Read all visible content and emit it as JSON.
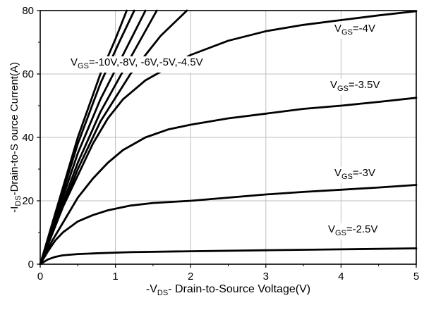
{
  "chart_data": {
    "type": "line",
    "title": "",
    "xlabel_pre": "-V",
    "xlabel_sub": "DS",
    "xlabel_post": "- Drain-to-Source Voltage(V)",
    "ylabel_pre": "-I",
    "ylabel_sub": "DS",
    "ylabel_post": "-Drain-to-S ource Current(A)",
    "xlim": [
      0,
      5
    ],
    "ylim": [
      0,
      80
    ],
    "xticks": [
      0,
      1,
      2,
      3,
      4,
      5
    ],
    "yticks": [
      0,
      20,
      40,
      60,
      80
    ],
    "x_minor_step": 0.5,
    "y_minor_step": 10,
    "grid_on": true,
    "grid_color": "#bfbfbf",
    "line_color": "#000000",
    "legend_position": "none",
    "series": [
      {
        "name": "VGS=-10V",
        "points": [
          [
            0,
            0
          ],
          [
            0.2,
            16
          ],
          [
            0.5,
            40
          ],
          [
            0.8,
            60
          ],
          [
            1.0,
            71
          ],
          [
            1.15,
            80
          ]
        ]
      },
      {
        "name": "VGS=-8V",
        "points": [
          [
            0,
            0
          ],
          [
            0.2,
            15
          ],
          [
            0.5,
            38
          ],
          [
            0.8,
            57
          ],
          [
            1.05,
            70
          ],
          [
            1.25,
            80
          ]
        ]
      },
      {
        "name": "VGS=-6V",
        "points": [
          [
            0,
            0
          ],
          [
            0.2,
            14
          ],
          [
            0.5,
            35
          ],
          [
            0.8,
            52
          ],
          [
            1.1,
            66
          ],
          [
            1.4,
            80
          ]
        ]
      },
      {
        "name": "VGS=-5V",
        "points": [
          [
            0,
            0
          ],
          [
            0.2,
            13
          ],
          [
            0.5,
            32
          ],
          [
            0.8,
            48
          ],
          [
            1.15,
            63
          ],
          [
            1.55,
            80
          ]
        ]
      },
      {
        "name": "VGS=-4.5V",
        "points": [
          [
            0,
            0
          ],
          [
            0.2,
            12
          ],
          [
            0.5,
            30
          ],
          [
            0.8,
            45
          ],
          [
            1.2,
            60
          ],
          [
            1.6,
            72
          ],
          [
            1.95,
            80
          ]
        ]
      },
      {
        "name": "VGS=-4V",
        "points": [
          [
            0,
            0
          ],
          [
            0.15,
            9
          ],
          [
            0.3,
            18
          ],
          [
            0.5,
            28
          ],
          [
            0.7,
            38
          ],
          [
            0.9,
            46
          ],
          [
            1.1,
            52
          ],
          [
            1.4,
            58
          ],
          [
            1.7,
            62
          ],
          [
            2.0,
            66
          ],
          [
            2.5,
            70.5
          ],
          [
            3.0,
            73.5
          ],
          [
            3.5,
            75.5
          ],
          [
            4.0,
            77
          ],
          [
            4.5,
            78.5
          ],
          [
            5.0,
            79.8
          ]
        ]
      },
      {
        "name": "VGS=-3.5V",
        "points": [
          [
            0,
            0
          ],
          [
            0.15,
            7
          ],
          [
            0.3,
            13
          ],
          [
            0.5,
            21
          ],
          [
            0.7,
            27
          ],
          [
            0.9,
            32
          ],
          [
            1.1,
            36
          ],
          [
            1.4,
            40
          ],
          [
            1.7,
            42.5
          ],
          [
            2.0,
            44
          ],
          [
            2.5,
            46
          ],
          [
            3.0,
            47.5
          ],
          [
            3.5,
            49
          ],
          [
            4.0,
            50
          ],
          [
            4.5,
            51.2
          ],
          [
            5.0,
            52.5
          ]
        ]
      },
      {
        "name": "VGS=-3V",
        "points": [
          [
            0,
            0
          ],
          [
            0.1,
            4
          ],
          [
            0.2,
            7.5
          ],
          [
            0.3,
            10
          ],
          [
            0.5,
            13.5
          ],
          [
            0.7,
            15.5
          ],
          [
            0.9,
            17
          ],
          [
            1.2,
            18.5
          ],
          [
            1.5,
            19.3
          ],
          [
            2.0,
            20
          ],
          [
            2.5,
            21
          ],
          [
            3.0,
            22
          ],
          [
            3.5,
            22.8
          ],
          [
            4.0,
            23.5
          ],
          [
            4.5,
            24.2
          ],
          [
            5.0,
            25
          ]
        ]
      },
      {
        "name": "VGS=-2.5V",
        "points": [
          [
            0,
            0
          ],
          [
            0.1,
            1.5
          ],
          [
            0.2,
            2.3
          ],
          [
            0.3,
            2.8
          ],
          [
            0.5,
            3.2
          ],
          [
            0.8,
            3.5
          ],
          [
            1.2,
            3.8
          ],
          [
            2.0,
            4.1
          ],
          [
            3.0,
            4.4
          ],
          [
            4.0,
            4.7
          ],
          [
            5.0,
            5
          ]
        ]
      }
    ]
  },
  "annotations": [
    {
      "pre": "V",
      "sub": "GS",
      "post": "=-10V,-8V, -6V,-5V,-4.5V"
    },
    {
      "pre": "V",
      "sub": "GS",
      "post": "=-4V"
    },
    {
      "pre": "V",
      "sub": "GS",
      "post": "=-3.5V"
    },
    {
      "pre": "V",
      "sub": "GS",
      "post": "=-3V"
    },
    {
      "pre": "V",
      "sub": "GS",
      "post": "=-2.5V"
    }
  ]
}
